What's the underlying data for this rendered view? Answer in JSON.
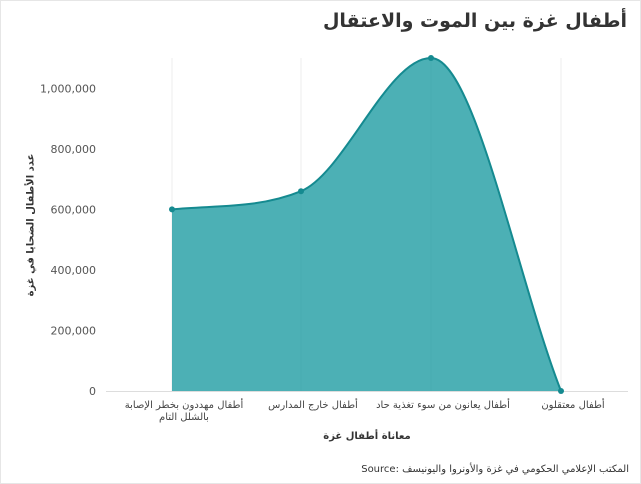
{
  "chart_data": {
    "type": "area",
    "title": "أطفال غزة بين الموت والاعتقال",
    "xlabel": "معاناة أطفال غزة",
    "ylabel": "عدد الأطفال الضحايا في غزة",
    "source": "Source: المكتب الإعلامي الحكومي في غزة والأونروا واليونيسف",
    "categories": [
      [
        "أطفال مهددون بخطر الإصابة",
        "بالشلل التام"
      ],
      [
        "أطفال خارج المدارس"
      ],
      [
        "أطفال يعانون من سوء تغذية حاد"
      ],
      [
        "أطفال معتقلون"
      ]
    ],
    "values": [
      600000,
      660000,
      1100000,
      0
    ],
    "ylim": [
      0,
      1100000
    ],
    "yticks": [
      0,
      200000,
      400000,
      600000,
      800000,
      1000000
    ],
    "ytick_labels": [
      "0",
      "200,000",
      "400,000",
      "600,000",
      "800,000",
      "1,000,000"
    ],
    "color": "#1a9aa0",
    "line_color": "#158a90",
    "grid": true,
    "legend": "none"
  }
}
